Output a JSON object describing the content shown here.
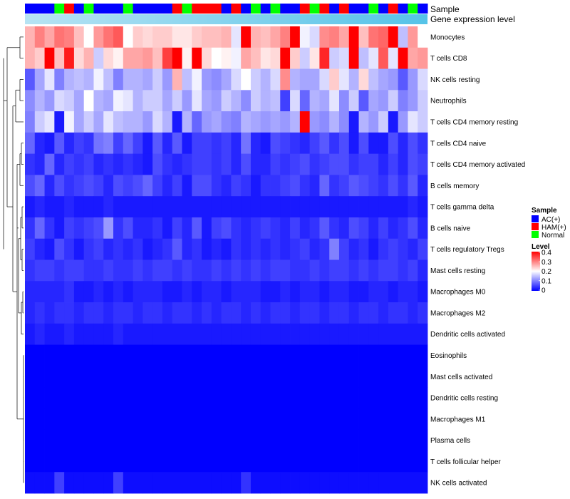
{
  "chart_data": {
    "type": "heatmap",
    "annotations": {
      "sample_title": "Sample",
      "expression_title": "Gene expression level"
    },
    "samples": [
      "AC(+)",
      "AC(+)",
      "AC(+)",
      "Normal",
      "HAM(+)",
      "AC(+)",
      "Normal",
      "AC(+)",
      "AC(+)",
      "AC(+)",
      "Normal",
      "AC(+)",
      "AC(+)",
      "AC(+)",
      "AC(+)",
      "HAM(+)",
      "Normal",
      "HAM(+)",
      "HAM(+)",
      "HAM(+)",
      "AC(+)",
      "HAM(+)",
      "AC(+)",
      "Normal",
      "AC(+)",
      "Normal",
      "AC(+)",
      "AC(+)",
      "HAM(+)",
      "Normal",
      "HAM(+)",
      "AC(+)",
      "HAM(+)",
      "AC(+)",
      "AC(+)",
      "Normal",
      "AC(+)",
      "HAM(+)",
      "AC(+)",
      "Normal",
      "AC(+)"
    ],
    "rows": [
      "Monocytes",
      "T cells CD8",
      "NK cells resting",
      "Neutrophils",
      "T cells CD4 memory resting",
      "T cells CD4 naive",
      "T cells CD4 memory activated",
      "B cells memory",
      "T cells gamma delta",
      "B cells naive",
      "T cells regulatory  Tregs",
      "Mast cells resting",
      "Macrophages M0",
      "Macrophages M2",
      "Dendritic cells activated",
      "Eosinophils",
      "Mast cells activated",
      "Dendritic cells resting",
      "Macrophages M1",
      "Plasma cells",
      "T cells follicular helper",
      "NK cells activated"
    ],
    "values": [
      [
        0.26,
        0.3,
        0.27,
        0.31,
        0.3,
        0.25,
        0.2,
        0.28,
        0.31,
        0.33,
        0.2,
        0.24,
        0.23,
        0.24,
        0.24,
        0.22,
        0.22,
        0.24,
        0.25,
        0.25,
        0.26,
        0.18,
        0.4,
        0.26,
        0.25,
        0.27,
        0.3,
        0.4,
        0.19,
        0.17,
        0.29,
        0.3,
        0.27,
        0.4,
        0.25,
        0.31,
        0.32,
        0.4,
        0.15,
        0.28,
        0.2
      ],
      [
        0.26,
        0.24,
        0.4,
        0.25,
        0.38,
        0.23,
        0.26,
        0.16,
        0.23,
        0.21,
        0.27,
        0.27,
        0.28,
        0.25,
        0.35,
        0.4,
        0.21,
        0.4,
        0.23,
        0.2,
        0.21,
        0.19,
        0.27,
        0.25,
        0.22,
        0.23,
        0.4,
        0.24,
        0.16,
        0.22,
        0.37,
        0.16,
        0.17,
        0.4,
        0.15,
        0.18,
        0.33,
        0.18,
        0.4,
        0.27,
        0.28
      ],
      [
        0.07,
        0.13,
        0.18,
        0.1,
        0.14,
        0.15,
        0.14,
        0.19,
        0.15,
        0.1,
        0.14,
        0.14,
        0.13,
        0.16,
        0.12,
        0.26,
        0.15,
        0.19,
        0.12,
        0.11,
        0.13,
        0.17,
        0.2,
        0.16,
        0.14,
        0.17,
        0.29,
        0.14,
        0.13,
        0.13,
        0.17,
        0.24,
        0.18,
        0.14,
        0.23,
        0.15,
        0.13,
        0.12,
        0.07,
        0.12,
        0.17
      ],
      [
        0.11,
        0.14,
        0.12,
        0.17,
        0.16,
        0.13,
        0.2,
        0.14,
        0.13,
        0.19,
        0.18,
        0.14,
        0.16,
        0.16,
        0.13,
        0.16,
        0.12,
        0.18,
        0.13,
        0.12,
        0.16,
        0.14,
        0.11,
        0.16,
        0.14,
        0.15,
        0.05,
        0.17,
        0.08,
        0.14,
        0.13,
        0.18,
        0.11,
        0.16,
        0.07,
        0.13,
        0.12,
        0.16,
        0.1,
        0.12,
        0.16
      ],
      [
        0.1,
        0.16,
        0.18,
        0.02,
        0.19,
        0.13,
        0.16,
        0.13,
        0.18,
        0.15,
        0.14,
        0.14,
        0.12,
        0.17,
        0.14,
        0.02,
        0.14,
        0.08,
        0.12,
        0.13,
        0.11,
        0.1,
        0.14,
        0.13,
        0.12,
        0.13,
        0.12,
        0.14,
        0.4,
        0.12,
        0.11,
        0.14,
        0.11,
        0.02,
        0.14,
        0.12,
        0.16,
        0.02,
        0.12,
        0.18,
        0.16
      ],
      [
        0.08,
        0.03,
        0.02,
        0.07,
        0.03,
        0.05,
        0.04,
        0.09,
        0.1,
        0.05,
        0.08,
        0.05,
        0.02,
        0.07,
        0.03,
        0.07,
        0.02,
        0.05,
        0.05,
        0.04,
        0.05,
        0.03,
        0.09,
        0.03,
        0.02,
        0.06,
        0.05,
        0.04,
        0.03,
        0.05,
        0.07,
        0.04,
        0.06,
        0.02,
        0.06,
        0.02,
        0.02,
        0.06,
        0.03,
        0.06,
        0.04
      ],
      [
        0.04,
        0.03,
        0.08,
        0.03,
        0.05,
        0.04,
        0.05,
        0.03,
        0.04,
        0.03,
        0.04,
        0.03,
        0.02,
        0.06,
        0.04,
        0.03,
        0.04,
        0.05,
        0.05,
        0.04,
        0.05,
        0.03,
        0.06,
        0.03,
        0.03,
        0.05,
        0.04,
        0.05,
        0.06,
        0.04,
        0.05,
        0.06,
        0.06,
        0.04,
        0.05,
        0.05,
        0.03,
        0.05,
        0.03,
        0.06,
        0.05
      ],
      [
        0.06,
        0.08,
        0.03,
        0.06,
        0.04,
        0.05,
        0.06,
        0.05,
        0.03,
        0.06,
        0.05,
        0.06,
        0.08,
        0.05,
        0.03,
        0.05,
        0.02,
        0.06,
        0.06,
        0.04,
        0.03,
        0.05,
        0.04,
        0.02,
        0.04,
        0.04,
        0.05,
        0.06,
        0.04,
        0.03,
        0.08,
        0.04,
        0.05,
        0.07,
        0.06,
        0.05,
        0.04,
        0.06,
        0.04,
        0.07,
        0.03
      ],
      [
        0.02,
        0.03,
        0.02,
        0.02,
        0.03,
        0.02,
        0.02,
        0.02,
        0.03,
        0.02,
        0.02,
        0.02,
        0.02,
        0.02,
        0.02,
        0.02,
        0.02,
        0.02,
        0.02,
        0.02,
        0.02,
        0.02,
        0.02,
        0.02,
        0.02,
        0.02,
        0.02,
        0.02,
        0.02,
        0.02,
        0.02,
        0.02,
        0.02,
        0.02,
        0.02,
        0.02,
        0.02,
        0.02,
        0.02,
        0.03,
        0.02
      ],
      [
        0.04,
        0.08,
        0.04,
        0.02,
        0.05,
        0.04,
        0.05,
        0.06,
        0.12,
        0.04,
        0.06,
        0.03,
        0.03,
        0.04,
        0.02,
        0.05,
        0.03,
        0.07,
        0.02,
        0.05,
        0.06,
        0.04,
        0.03,
        0.04,
        0.05,
        0.04,
        0.03,
        0.05,
        0.03,
        0.04,
        0.07,
        0.04,
        0.03,
        0.06,
        0.05,
        0.03,
        0.05,
        0.03,
        0.04,
        0.06,
        0.03
      ],
      [
        0.05,
        0.03,
        0.02,
        0.06,
        0.04,
        0.02,
        0.04,
        0.05,
        0.03,
        0.04,
        0.03,
        0.04,
        0.02,
        0.03,
        0.04,
        0.07,
        0.03,
        0.04,
        0.02,
        0.03,
        0.02,
        0.04,
        0.03,
        0.04,
        0.03,
        0.04,
        0.03,
        0.04,
        0.05,
        0.03,
        0.04,
        0.1,
        0.05,
        0.03,
        0.04,
        0.02,
        0.04,
        0.05,
        0.04,
        0.03,
        0.05
      ],
      [
        0.04,
        0.05,
        0.05,
        0.04,
        0.05,
        0.05,
        0.04,
        0.04,
        0.05,
        0.04,
        0.04,
        0.05,
        0.04,
        0.05,
        0.05,
        0.04,
        0.05,
        0.04,
        0.04,
        0.05,
        0.04,
        0.05,
        0.04,
        0.05,
        0.04,
        0.05,
        0.05,
        0.04,
        0.04,
        0.05,
        0.04,
        0.05,
        0.05,
        0.04,
        0.05,
        0.04,
        0.05,
        0.05,
        0.04,
        0.05,
        0.03
      ],
      [
        0.03,
        0.03,
        0.03,
        0.03,
        0.04,
        0.02,
        0.02,
        0.03,
        0.02,
        0.03,
        0.02,
        0.03,
        0.03,
        0.03,
        0.02,
        0.02,
        0.03,
        0.02,
        0.03,
        0.03,
        0.02,
        0.03,
        0.03,
        0.03,
        0.02,
        0.02,
        0.03,
        0.02,
        0.03,
        0.03,
        0.02,
        0.03,
        0.03,
        0.02,
        0.02,
        0.03,
        0.03,
        0.02,
        0.03,
        0.03,
        0.02
      ],
      [
        0.03,
        0.04,
        0.03,
        0.04,
        0.04,
        0.03,
        0.04,
        0.04,
        0.03,
        0.04,
        0.04,
        0.03,
        0.04,
        0.04,
        0.03,
        0.04,
        0.04,
        0.03,
        0.04,
        0.03,
        0.04,
        0.04,
        0.03,
        0.04,
        0.03,
        0.04,
        0.04,
        0.03,
        0.04,
        0.04,
        0.03,
        0.04,
        0.04,
        0.03,
        0.04,
        0.04,
        0.03,
        0.04,
        0.04,
        0.03,
        0.04
      ],
      [
        0.02,
        0.03,
        0.02,
        0.02,
        0.03,
        0.02,
        0.02,
        0.02,
        0.02,
        0.03,
        0.02,
        0.02,
        0.02,
        0.02,
        0.02,
        0.02,
        0.02,
        0.02,
        0.02,
        0.02,
        0.02,
        0.02,
        0.02,
        0.02,
        0.02,
        0.02,
        0.02,
        0.02,
        0.02,
        0.02,
        0.02,
        0.02,
        0.02,
        0.02,
        0.02,
        0.02,
        0.02,
        0.02,
        0.02,
        0.02,
        0.02
      ],
      [
        0,
        0,
        0,
        0,
        0,
        0,
        0,
        0,
        0,
        0,
        0,
        0,
        0,
        0,
        0,
        0,
        0,
        0,
        0,
        0,
        0,
        0,
        0,
        0,
        0,
        0,
        0,
        0,
        0,
        0,
        0,
        0,
        0,
        0,
        0,
        0,
        0,
        0,
        0,
        0,
        0
      ],
      [
        0,
        0,
        0,
        0,
        0,
        0,
        0,
        0,
        0,
        0,
        0,
        0,
        0,
        0,
        0,
        0,
        0,
        0,
        0,
        0,
        0,
        0,
        0,
        0,
        0,
        0,
        0,
        0,
        0,
        0,
        0,
        0,
        0,
        0,
        0,
        0,
        0,
        0,
        0,
        0,
        0
      ],
      [
        0,
        0,
        0,
        0,
        0,
        0,
        0,
        0,
        0,
        0,
        0,
        0,
        0,
        0,
        0,
        0,
        0,
        0,
        0,
        0,
        0,
        0,
        0,
        0,
        0,
        0,
        0,
        0,
        0,
        0,
        0,
        0,
        0,
        0,
        0,
        0,
        0,
        0,
        0,
        0,
        0
      ],
      [
        0,
        0,
        0,
        0,
        0,
        0,
        0,
        0,
        0,
        0,
        0,
        0,
        0,
        0,
        0,
        0,
        0,
        0,
        0,
        0,
        0,
        0,
        0,
        0,
        0,
        0,
        0,
        0,
        0,
        0,
        0,
        0,
        0,
        0,
        0,
        0,
        0,
        0,
        0,
        0,
        0
      ],
      [
        0,
        0,
        0,
        0,
        0,
        0,
        0,
        0,
        0,
        0,
        0,
        0,
        0,
        0,
        0,
        0,
        0,
        0,
        0,
        0,
        0,
        0,
        0,
        0,
        0,
        0,
        0,
        0,
        0,
        0,
        0,
        0,
        0,
        0,
        0,
        0,
        0,
        0,
        0,
        0,
        0
      ],
      [
        0,
        0,
        0,
        0,
        0,
        0,
        0,
        0,
        0,
        0,
        0,
        0,
        0,
        0,
        0,
        0,
        0,
        0,
        0,
        0,
        0,
        0,
        0,
        0,
        0,
        0,
        0,
        0,
        0,
        0,
        0,
        0,
        0,
        0,
        0,
        0,
        0,
        0,
        0,
        0,
        0
      ],
      [
        0.01,
        0.01,
        0.01,
        0.05,
        0.01,
        0.01,
        0.01,
        0.01,
        0.01,
        0.05,
        0.01,
        0.01,
        0.01,
        0.01,
        0.01,
        0.01,
        0.01,
        0.01,
        0.01,
        0.01,
        0.01,
        0.01,
        0.04,
        0.01,
        0.01,
        0.01,
        0.01,
        0.01,
        0.01,
        0.01,
        0.01,
        0.01,
        0.01,
        0.01,
        0.01,
        0.01,
        0.01,
        0.01,
        0.01,
        0.01,
        0.01
      ]
    ],
    "color_scale": {
      "min": 0,
      "mid": 0.2,
      "max": 0.4,
      "low": "#0000FF",
      "mid_color": "#FFFFFF",
      "high": "#FF0000"
    },
    "legend": {
      "sample_title": "Sample",
      "sample_entries": [
        {
          "label": "AC(+)",
          "color": "#0000FF"
        },
        {
          "label": "HAM(+)",
          "color": "#FF0000"
        },
        {
          "label": "Normal",
          "color": "#00FF00"
        }
      ],
      "level_title": "Level",
      "level_ticks": [
        "0.4",
        "0.3",
        "0.2",
        "0.1",
        "0"
      ]
    },
    "expression_bar_colors": {
      "left": "#B7E3F3",
      "right": "#55C3E8"
    }
  }
}
